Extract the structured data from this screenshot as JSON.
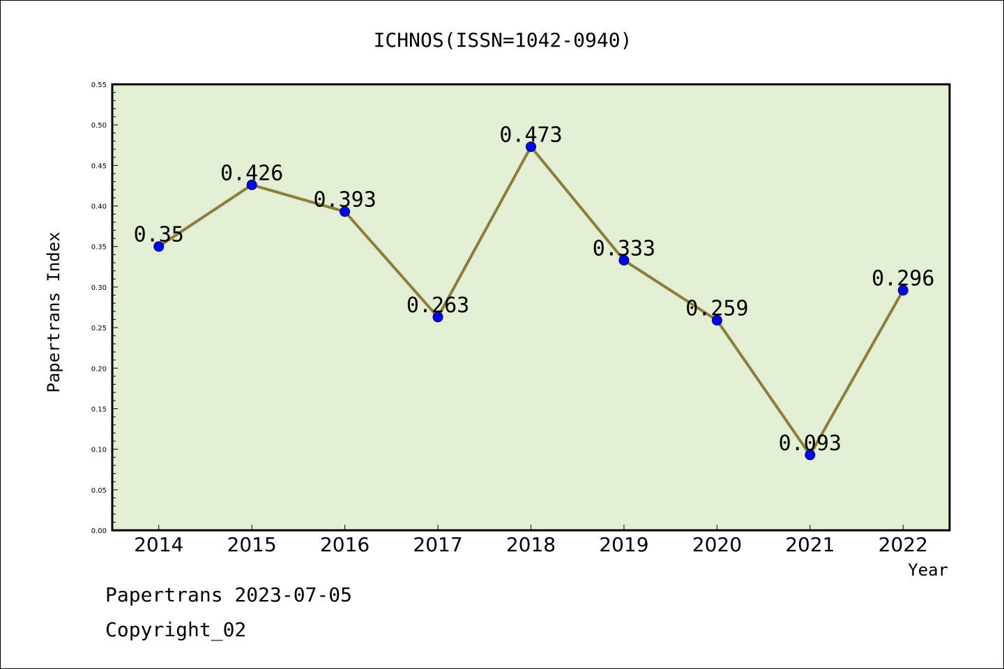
{
  "footer": {
    "line1": "Papertrans 2023-07-05",
    "line2": "Copyright_02"
  },
  "chart_data": {
    "type": "line",
    "title": "ICHNOS(ISSN=1042-0940)",
    "xlabel": "Year",
    "ylabel": "Papertrans Index",
    "categories": [
      "2014",
      "2015",
      "2016",
      "2017",
      "2018",
      "2019",
      "2020",
      "2021",
      "2022"
    ],
    "series": [
      {
        "values": [
          0.35,
          0.426,
          0.393,
          0.263,
          0.473,
          0.333,
          0.259,
          0.093,
          0.296
        ],
        "labels": [
          "0.35",
          "0.426",
          "0.393",
          "0.263",
          "0.473",
          "0.333",
          "0.259",
          "0.093",
          "0.296"
        ],
        "line_color": "#8b7d3a",
        "marker_color": "#0000ff"
      }
    ],
    "ylim": [
      0,
      0.55
    ],
    "yticks": [
      "0.00",
      "0.05",
      "0.10",
      "0.15",
      "0.20",
      "0.25",
      "0.30",
      "0.35",
      "0.40",
      "0.45",
      "0.50",
      "0.55"
    ],
    "plot_background": "#e2efd5",
    "grid": false,
    "legend": "none"
  }
}
